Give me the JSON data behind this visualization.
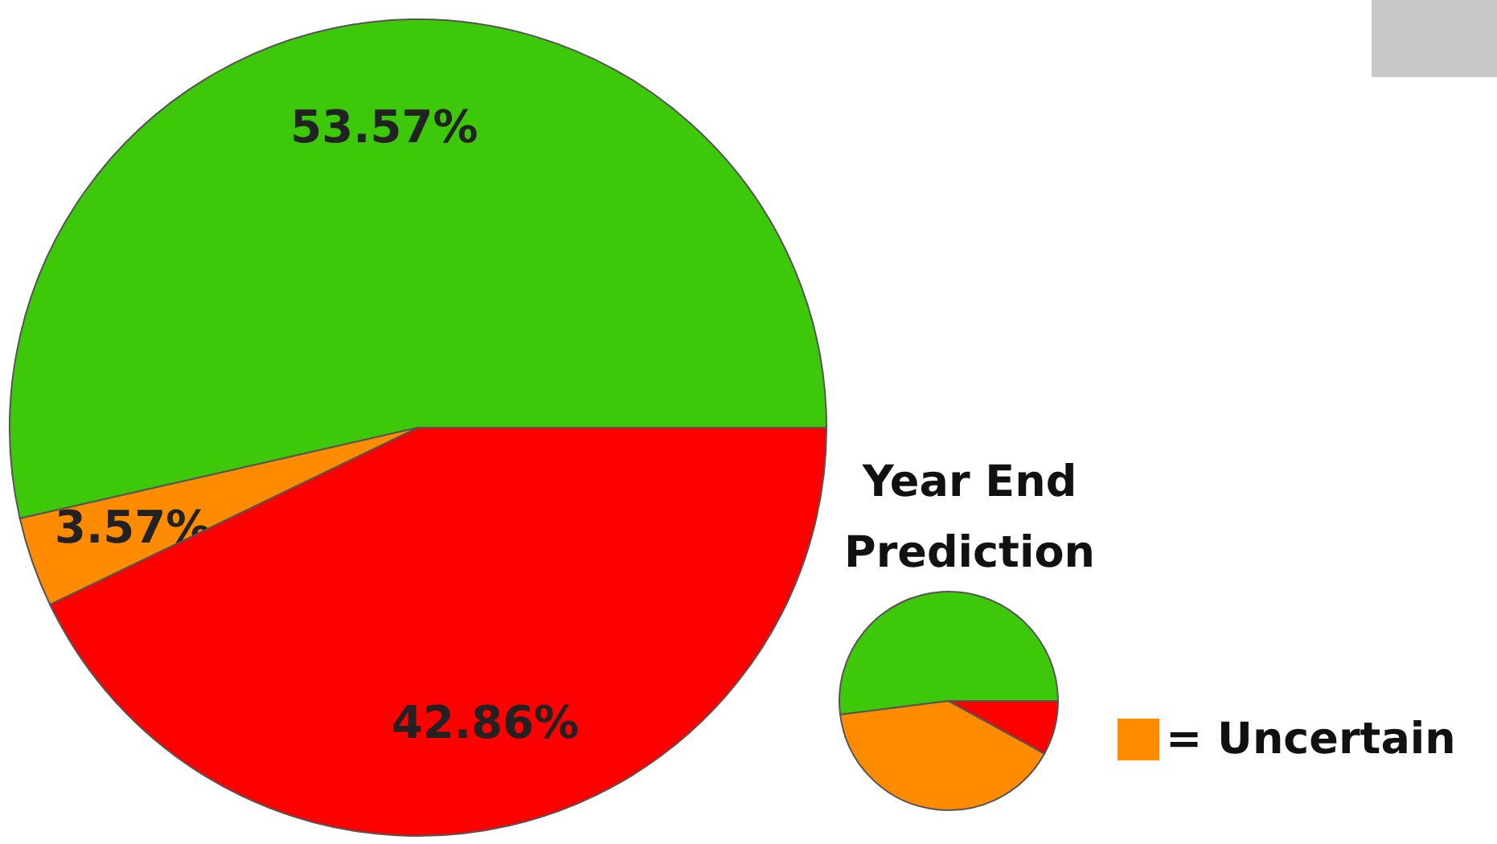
{
  "chart_data": [
    {
      "type": "pie",
      "categories": [
        null,
        null,
        null
      ],
      "values": [
        53.57,
        3.57,
        42.86
      ],
      "colors": [
        "#3ec80a",
        "#ff8c00",
        "#ff0000"
      ],
      "value_labels": [
        "53.57%",
        "3.57%",
        "42.86%"
      ]
    },
    {
      "type": "pie",
      "title": "Year End Prediction",
      "categories": [
        null,
        "= Uncertain",
        null
      ],
      "values": [
        52,
        40,
        8
      ],
      "colors": [
        "#3ec80a",
        "#ff8c00",
        "#ff0000"
      ],
      "legend": "right"
    }
  ]
}
